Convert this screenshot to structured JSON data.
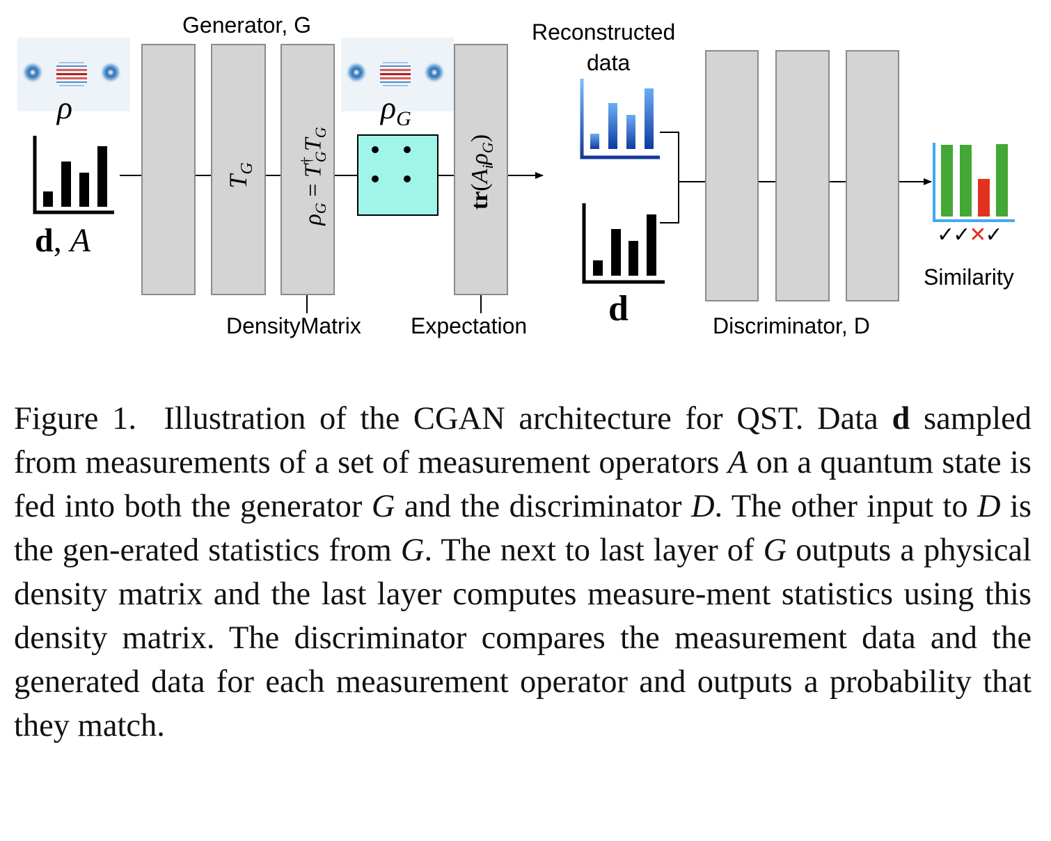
{
  "diagram": {
    "generator_label": "Generator, G",
    "reconstructed_label_line1": "Reconstructed",
    "reconstructed_label_line2": "data",
    "density_matrix_label": "DensityMatrix",
    "expectation_label": "Expectation",
    "discriminator_label": "Discriminator, D",
    "similarity_label": "Similarity",
    "input_symbol_d": "d",
    "input_symbol_sep": ", ",
    "input_symbol_A": "A",
    "rho_symbol": "ρ",
    "rho_G_base": "ρ",
    "rho_G_sub": "G",
    "layer2_main": "T",
    "layer2_sub": "G",
    "layer3_lhs": "ρ",
    "layer3_lhs_sub": "G",
    "layer3_eq": " = ",
    "layer3_T1": "T",
    "layer3_dagger": "†",
    "layer3_T1_sub": "G",
    "layer3_T2": "T",
    "layer3_T2_sub": "G",
    "layer4_tr": "tr",
    "layer4_open": "(",
    "layer4_A": "A",
    "layer4_A_sub": "i",
    "layer4_rho": "ρ",
    "layer4_rho_sub": "G",
    "layer4_close": ")",
    "data_symbol_d": "d",
    "similarity_marks": [
      "✓",
      "✓",
      "✕",
      "✓"
    ],
    "colors": {
      "layer_fill": "#d4d4d4",
      "matrix_fill": "#9ff5e8",
      "blue_bar": "#1f55c4",
      "green_bar": "#43a835",
      "red_bar": "#e0321f",
      "red_cross": "#e0321f"
    }
  },
  "caption": {
    "fig_label": "Figure 1.",
    "text_1": "Illustration of the CGAN architecture for QST. Data ",
    "bold_d": "d",
    "text_2": " sampled from measurements of a set of measurement operators ",
    "ital_A": "A",
    "text_3": " on a quantum state is fed into both the generator ",
    "ital_G1": "G",
    "text_4": " and the discriminator ",
    "ital_D1": "D",
    "text_5": ". The other input to ",
    "ital_D2": "D",
    "text_6": " is the gen-erated statistics from ",
    "ital_G2": "G",
    "text_7": ". The next to last layer of ",
    "ital_G3": "G",
    "text_8": " outputs a physical density matrix and the last layer computes measure-ment statistics using this density matrix. The discriminator compares the measurement data and the generated data for each measurement operator and outputs a probability that they match."
  }
}
